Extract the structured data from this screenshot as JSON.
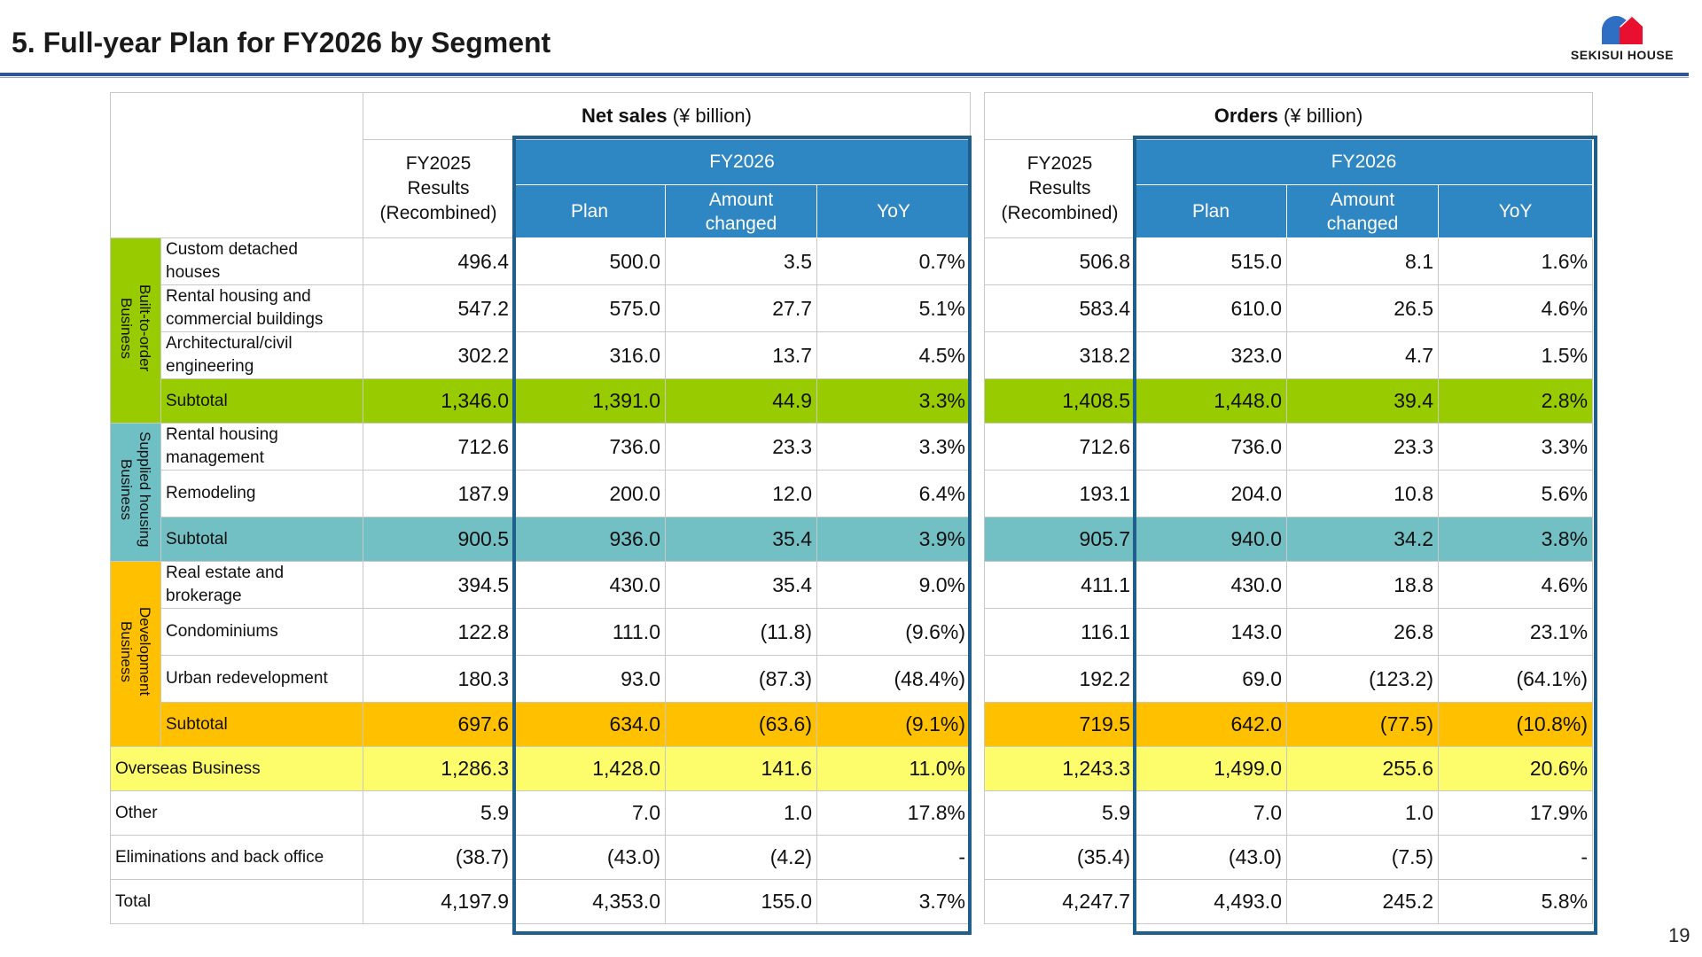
{
  "page": {
    "title": "5. Full-year Plan for FY2026 by Segment",
    "page_number": "19"
  },
  "logo": {
    "text": "SEKISUI HOUSE",
    "colors": {
      "blue": "#2e6fc4",
      "red": "#e8102e"
    }
  },
  "sales": {
    "header_bold": "Net sales",
    "header_unit": " (¥ billion)",
    "col_fy2025": [
      "FY2025",
      "Results",
      "(Recombined)"
    ],
    "col_fy2026": "FY2026",
    "col_plan": "Plan",
    "col_amount": [
      "Amount",
      "changed"
    ],
    "col_yoy": "YoY"
  },
  "orders": {
    "header_bold": "Orders",
    "header_unit": " (¥ billion)",
    "col_fy2025": [
      "FY2025",
      "Results",
      "(Recombined)"
    ],
    "col_fy2026": "FY2026",
    "col_plan": "Plan",
    "col_amount": [
      "Amount",
      "changed"
    ],
    "col_yoy": "YoY"
  },
  "groups": {
    "built": {
      "label": [
        "Built-to-order",
        "Business"
      ],
      "color": "#99cc00"
    },
    "supplied": {
      "label": [
        "Supplied housing",
        "Business"
      ],
      "color": "#72bfc4"
    },
    "development": {
      "label": [
        "Development",
        "Business"
      ],
      "color": "#ffc000"
    },
    "overseas_color": "#fdfd6b",
    "highlight_color": "#1f5f8b"
  },
  "rows": [
    {
      "label": [
        "Custom detached",
        "houses"
      ],
      "sales": [
        "496.4",
        "500.0",
        "3.5",
        "0.7%"
      ],
      "orders": [
        "506.8",
        "515.0",
        "8.1",
        "1.6%"
      ]
    },
    {
      "label": [
        "Rental housing and",
        "commercial buildings"
      ],
      "sales": [
        "547.2",
        "575.0",
        "27.7",
        "5.1%"
      ],
      "orders": [
        "583.4",
        "610.0",
        "26.5",
        "4.6%"
      ]
    },
    {
      "label": [
        "Architectural/civil",
        "engineering"
      ],
      "sales": [
        "302.2",
        "316.0",
        "13.7",
        "4.5%"
      ],
      "orders": [
        "318.2",
        "323.0",
        "4.7",
        "1.5%"
      ]
    },
    {
      "label": [
        "Subtotal"
      ],
      "sales": [
        "1,346.0",
        "1,391.0",
        "44.9",
        "3.3%"
      ],
      "orders": [
        "1,408.5",
        "1,448.0",
        "39.4",
        "2.8%"
      ]
    },
    {
      "label": [
        "Rental housing",
        "management"
      ],
      "sales": [
        "712.6",
        "736.0",
        "23.3",
        "3.3%"
      ],
      "orders": [
        "712.6",
        "736.0",
        "23.3",
        "3.3%"
      ]
    },
    {
      "label": [
        "Remodeling"
      ],
      "sales": [
        "187.9",
        "200.0",
        "12.0",
        "6.4%"
      ],
      "orders": [
        "193.1",
        "204.0",
        "10.8",
        "5.6%"
      ]
    },
    {
      "label": [
        "Subtotal"
      ],
      "sales": [
        "900.5",
        "936.0",
        "35.4",
        "3.9%"
      ],
      "orders": [
        "905.7",
        "940.0",
        "34.2",
        "3.8%"
      ]
    },
    {
      "label": [
        "Real estate and",
        "brokerage"
      ],
      "sales": [
        "394.5",
        "430.0",
        "35.4",
        "9.0%"
      ],
      "orders": [
        "411.1",
        "430.0",
        "18.8",
        "4.6%"
      ]
    },
    {
      "label": [
        "Condominiums"
      ],
      "sales": [
        "122.8",
        "111.0",
        "(11.8)",
        "(9.6%)"
      ],
      "orders": [
        "116.1",
        "143.0",
        "26.8",
        "23.1%"
      ]
    },
    {
      "label": [
        "Urban redevelopment"
      ],
      "sales": [
        "180.3",
        "93.0",
        "(87.3)",
        "(48.4%)"
      ],
      "orders": [
        "192.2",
        "69.0",
        "(123.2)",
        "(64.1%)"
      ]
    },
    {
      "label": [
        "Subtotal"
      ],
      "sales": [
        "697.6",
        "634.0",
        "(63.6)",
        "(9.1%)"
      ],
      "orders": [
        "719.5",
        "642.0",
        "(77.5)",
        "(10.8%)"
      ]
    },
    {
      "label": [
        "Overseas Business"
      ],
      "sales": [
        "1,286.3",
        "1,428.0",
        "141.6",
        "11.0%"
      ],
      "orders": [
        "1,243.3",
        "1,499.0",
        "255.6",
        "20.6%"
      ]
    },
    {
      "label": [
        "Other"
      ],
      "sales": [
        "5.9",
        "7.0",
        "1.0",
        "17.8%"
      ],
      "orders": [
        "5.9",
        "7.0",
        "1.0",
        "17.9%"
      ]
    },
    {
      "label": [
        "Eliminations and back office"
      ],
      "sales": [
        "(38.7)",
        "(43.0)",
        "(4.2)",
        "-"
      ],
      "orders": [
        "(35.4)",
        "(43.0)",
        "(7.5)",
        "-"
      ]
    },
    {
      "label": [
        "Total"
      ],
      "sales": [
        "4,197.9",
        "4,353.0",
        "155.0",
        "3.7%"
      ],
      "orders": [
        "4,247.7",
        "4,493.0",
        "245.2",
        "5.8%"
      ]
    }
  ]
}
